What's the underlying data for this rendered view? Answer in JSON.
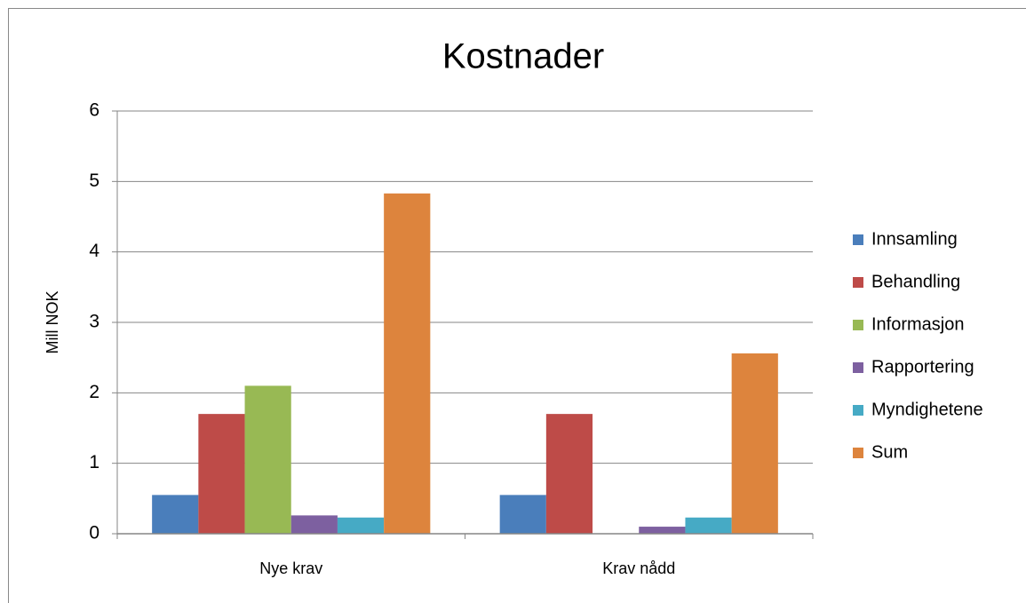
{
  "chart_data": {
    "type": "bar",
    "title": "Kostnader",
    "y_label": "Mill NOK",
    "categories": [
      "Nye krav",
      "Krav nådd"
    ],
    "series": [
      {
        "name": "Innsamling",
        "color": "#4a7ebb",
        "values": [
          0.55,
          0.55
        ]
      },
      {
        "name": "Behandling",
        "color": "#be4b48",
        "values": [
          1.7,
          1.7
        ]
      },
      {
        "name": "Informasjon",
        "color": "#98b954",
        "values": [
          2.1,
          0
        ]
      },
      {
        "name": "Rapportering",
        "color": "#7d60a0",
        "values": [
          0.26,
          0.1
        ]
      },
      {
        "name": "Myndighetene",
        "color": "#46aac5",
        "values": [
          0.23,
          0.23
        ]
      },
      {
        "name": "Sum",
        "color": "#dd843d",
        "values": [
          4.83,
          2.56
        ]
      }
    ],
    "ylim": [
      0,
      6
    ],
    "yticks": [
      0,
      1,
      2,
      3,
      4,
      5,
      6
    ],
    "grid": true,
    "legend": "right"
  }
}
